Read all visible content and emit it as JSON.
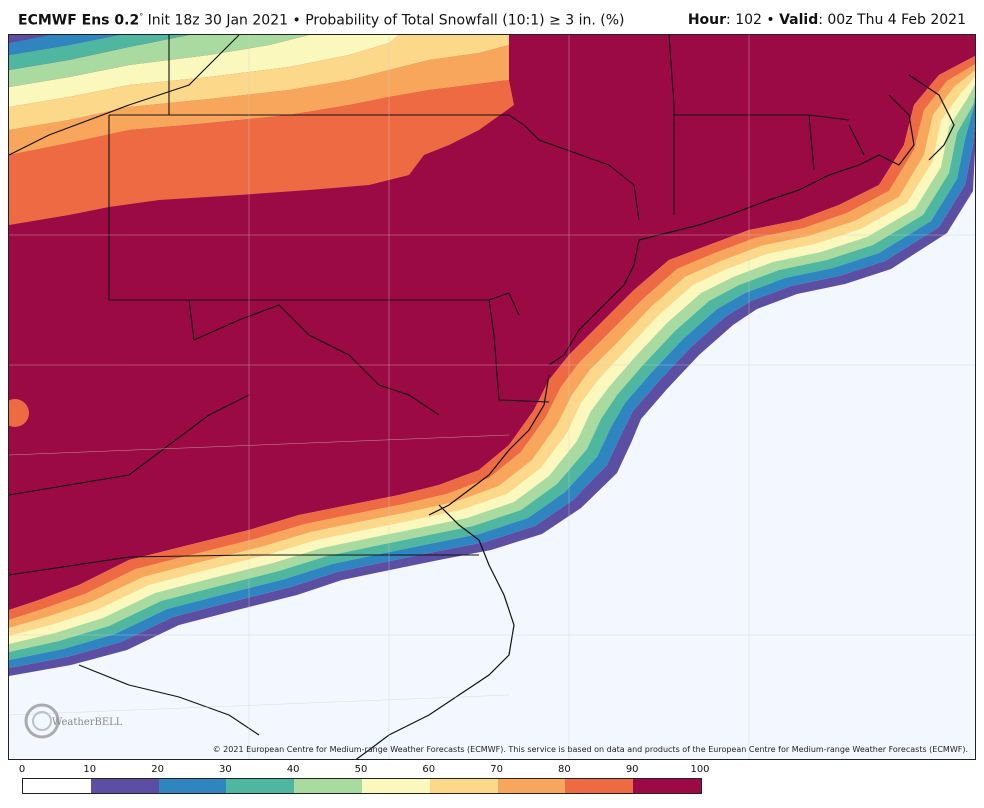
{
  "header": {
    "model": "ECMWF Ens 0.2",
    "degree": "°",
    "init": "Init 18z 30 Jan 2021",
    "bullet": "•",
    "product": "Probability of Total Snowfall (10:1)",
    "threshold": "≥ 3 in. (%)",
    "hour_label": "Hour",
    "hour_value": ": 102",
    "valid_label": "Valid",
    "valid_value": ": 00z Thu 4 Feb 2021"
  },
  "copyright": "© 2021 European Centre for Medium-range Weather Forecasts (ECMWF). This service is based on data and products of the European Centre for Medium-range Weather Forecasts (ECMWF).",
  "logo": {
    "name": "WeatherBELL",
    "icon": "weatherbell-logo"
  },
  "legend": {
    "ticks": [
      "0",
      "10",
      "20",
      "30",
      "40",
      "50",
      "60",
      "70",
      "80",
      "90",
      "100"
    ],
    "colors": [
      "#ffffff",
      "#5b4ea3",
      "#2f85bf",
      "#4fb6a0",
      "#a9dba0",
      "#fbf8bd",
      "#fcd88a",
      "#f8a65c",
      "#ee6a43",
      "#9c0a45"
    ]
  }
}
